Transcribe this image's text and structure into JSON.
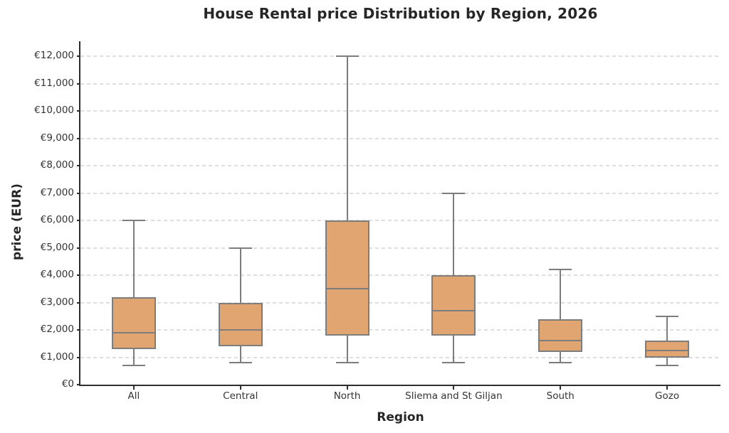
{
  "chart_data": {
    "type": "boxplot",
    "title": "House Rental price Distribution by Region, 2026",
    "xlabel": "Region",
    "ylabel": "price (EUR)",
    "categories": [
      "All",
      "Central",
      "North",
      "Sliema and St Giljan",
      "South",
      "Gozo"
    ],
    "series": [
      {
        "name": "All",
        "min": 700,
        "q1": 1300,
        "median": 1900,
        "q3": 3200,
        "max": 6000
      },
      {
        "name": "Central",
        "min": 800,
        "q1": 1400,
        "median": 2000,
        "q3": 3000,
        "max": 5000
      },
      {
        "name": "North",
        "min": 800,
        "q1": 1800,
        "median": 3500,
        "q3": 6000,
        "max": 12000
      },
      {
        "name": "Sliema and St Giljan",
        "min": 800,
        "q1": 1800,
        "median": 2700,
        "q3": 4000,
        "max": 7000
      },
      {
        "name": "South",
        "min": 800,
        "q1": 1200,
        "median": 1600,
        "q3": 2400,
        "max": 4200
      },
      {
        "name": "Gozo",
        "min": 700,
        "q1": 1000,
        "median": 1250,
        "q3": 1600,
        "max": 2500
      }
    ],
    "ylim": [
      0,
      12500
    ],
    "ytick_interval": 1000,
    "ytick_labels": [
      "€0",
      "€1,000",
      "€2,000",
      "€3,000",
      "€4,000",
      "€5,000",
      "€6,000",
      "€7,000",
      "€8,000",
      "€9,000",
      "€10,000",
      "€11,000",
      "€12,000"
    ],
    "grid": "horizontal-dashed",
    "legend": "none",
    "colors": {
      "box_fill": "#e0a571",
      "box_edge": "#7d7d7d",
      "whisker": "#7d7d7d",
      "median": "#7d7d7d",
      "grid": "#dedede",
      "axis": "#2e2e2e",
      "text": "#262626",
      "background": "#ffffff"
    }
  }
}
